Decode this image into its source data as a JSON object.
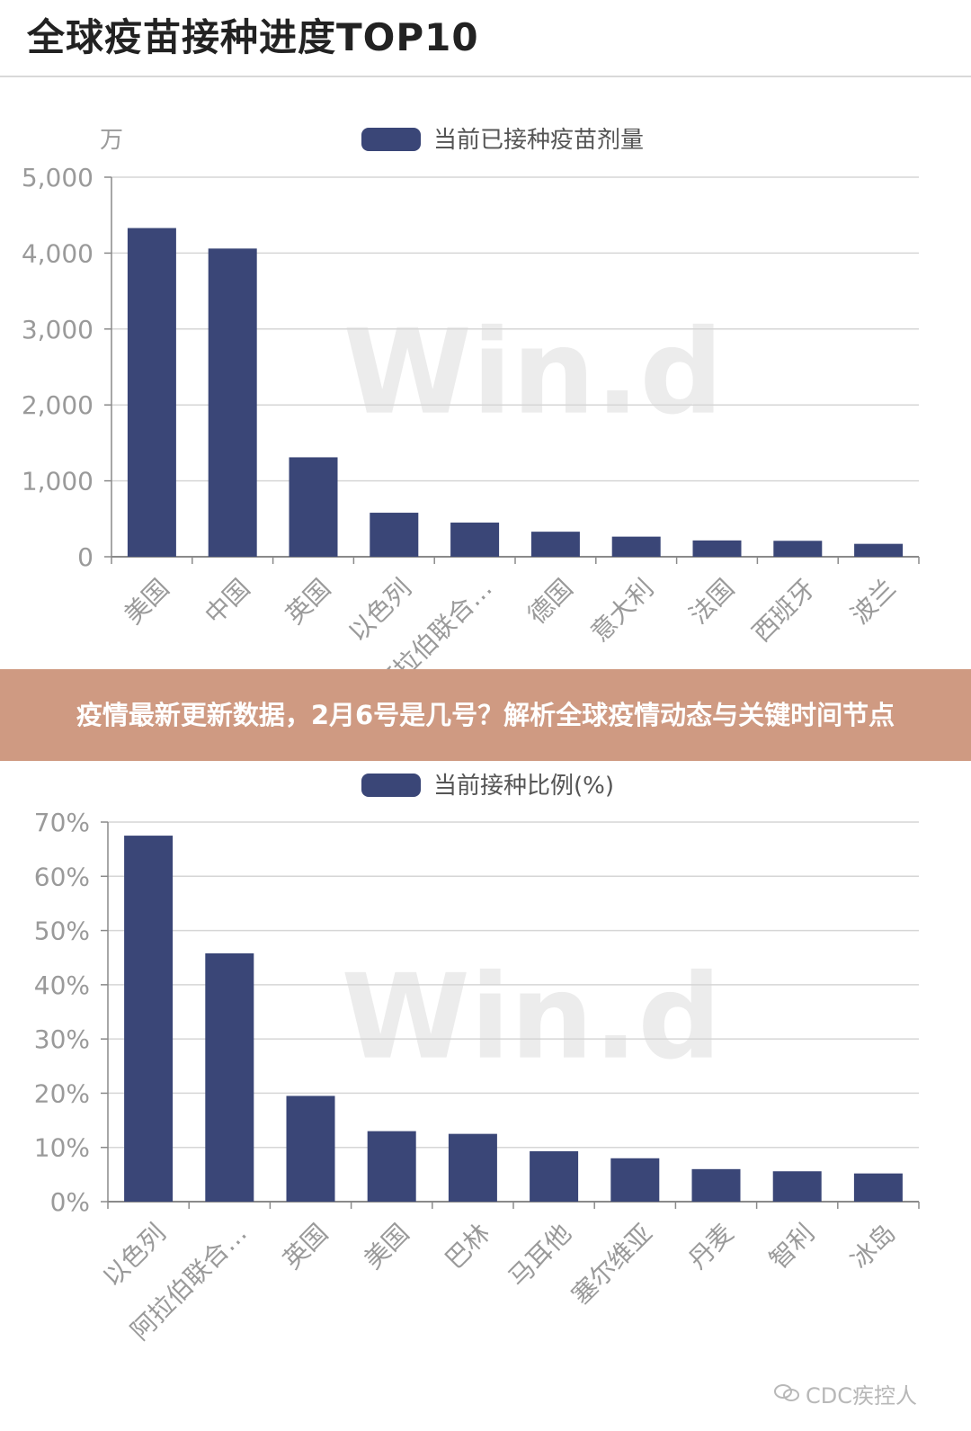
{
  "page_title": "全球疫苗接种进度TOP10",
  "banner_text": "疫情最新更新数据，2月6号是几号？解析全球疫情动态与关键时间节点",
  "watermark": "Win.d",
  "footer_credit": "CDC疾控人",
  "colors": {
    "bar": "#3a4677",
    "grid": "#d6d6d6",
    "axis": "#8a8a8a",
    "label": "#9a9a9a",
    "banner": "#cf9a82"
  },
  "chart_data": [
    {
      "type": "bar",
      "unit_label": "万",
      "legend": "当前已接种疫苗剂量",
      "legend_position": "top-center",
      "categories": [
        "美国",
        "中国",
        "英国",
        "以色列",
        "阿拉伯联合…",
        "德国",
        "意大利",
        "法国",
        "西班牙",
        "波兰"
      ],
      "values": [
        4330,
        4060,
        1310,
        580,
        450,
        330,
        265,
        215,
        210,
        170
      ],
      "ylim": [
        0,
        5000
      ],
      "yticks": [
        "0",
        "1,000",
        "2,000",
        "3,000",
        "4,000",
        "5,000"
      ],
      "grid": true
    },
    {
      "type": "bar",
      "legend": "当前接种比例(%)",
      "legend_position": "top-center",
      "categories": [
        "以色列",
        "阿拉伯联合…",
        "英国",
        "美国",
        "巴林",
        "马耳他",
        "塞尔维亚",
        "丹麦",
        "智利",
        "冰岛"
      ],
      "values": [
        67.5,
        45.8,
        19.5,
        13.0,
        12.5,
        9.3,
        8.0,
        6.0,
        5.6,
        5.2
      ],
      "ylim": [
        0,
        70
      ],
      "yticks": [
        "0%",
        "10%",
        "20%",
        "30%",
        "40%",
        "50%",
        "60%",
        "70%"
      ],
      "grid": true
    }
  ]
}
